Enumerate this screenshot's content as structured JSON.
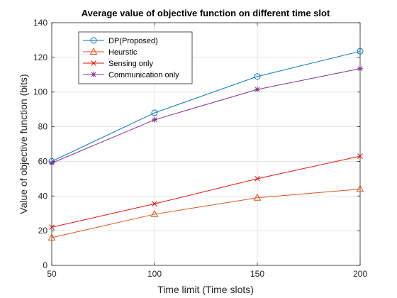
{
  "chart_data": {
    "type": "line",
    "title": "Average value of objective function on different time slot",
    "xlabel": "Time limit (Time slots)",
    "ylabel": "Value of objective function (bits)",
    "x": [
      50,
      100,
      150,
      200
    ],
    "xlim": [
      50,
      200
    ],
    "ylim": [
      0,
      140
    ],
    "xticks": [
      50,
      100,
      150,
      200
    ],
    "yticks": [
      0,
      20,
      40,
      60,
      80,
      100,
      120,
      140
    ],
    "grid": true,
    "legend_position": "top-left",
    "series": [
      {
        "name": "DP(Proposed)",
        "values": [
          60,
          88,
          109,
          123.5
        ],
        "color": "#0072BD",
        "marker": "circle"
      },
      {
        "name": "Heurstic",
        "values": [
          16,
          29.5,
          39,
          44
        ],
        "color": "#D95319",
        "marker": "triangle"
      },
      {
        "name": "Sensing only",
        "values": [
          22,
          35.5,
          50,
          63
        ],
        "color": "#E3120B",
        "marker": "x"
      },
      {
        "name": "Communication only",
        "values": [
          59,
          84,
          101.5,
          113.5
        ],
        "color": "#7E2F8E",
        "marker": "star"
      }
    ]
  }
}
